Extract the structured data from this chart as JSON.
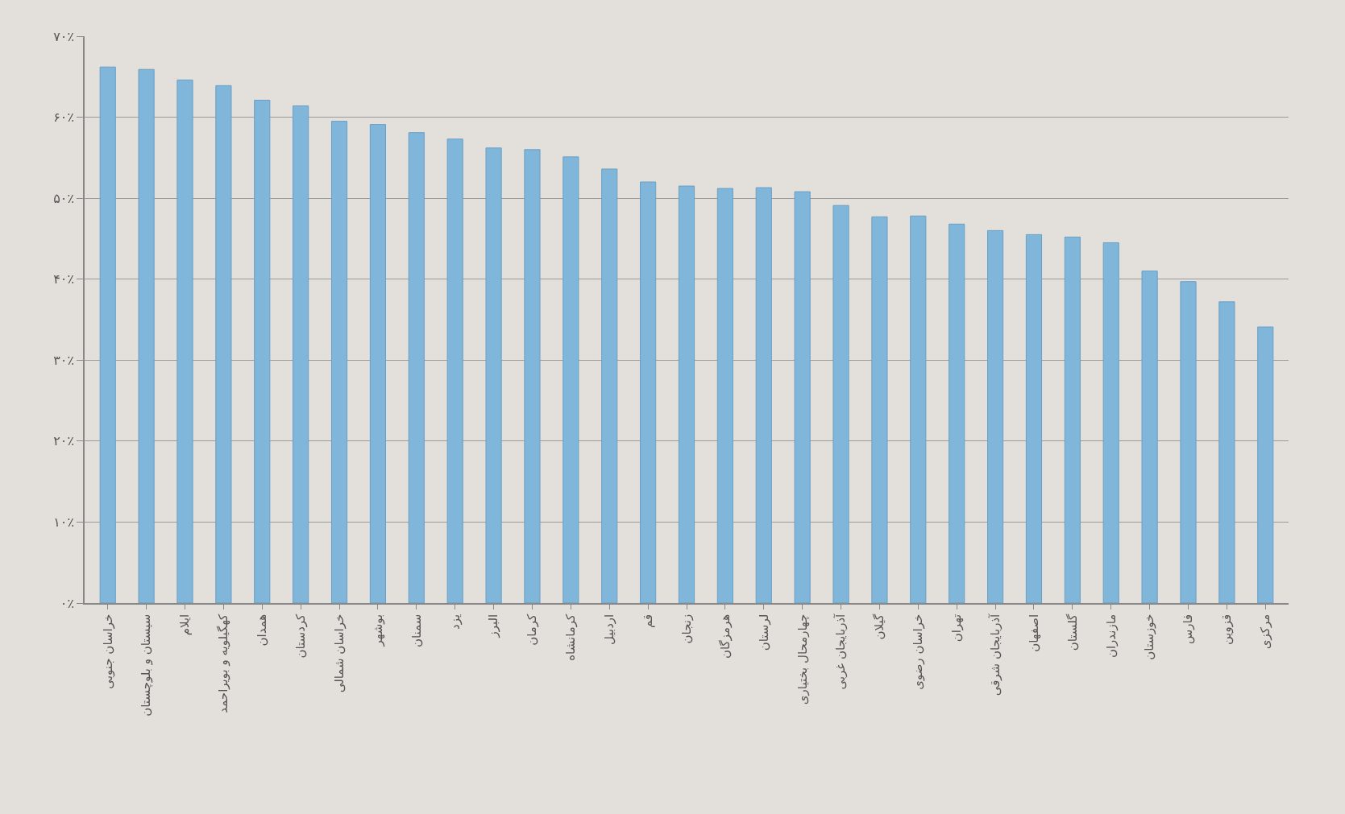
{
  "chart_data": {
    "type": "bar",
    "categories": [
      "خراسان جنوبی",
      "سیستان و بلوچستان",
      "ایلام",
      "کهگیلویه و بویراحمد",
      "همدان",
      "کردستان",
      "خراسان شمالی",
      "بوشهر",
      "سمنان",
      "یزد",
      "البرز",
      "کرمان",
      "کرمانشاه",
      "اردبیل",
      "قم",
      "زنجان",
      "هرمزگان",
      "لرستان",
      "چهارمحال بختیاری",
      "آذربایجان غربی",
      "گیلان",
      "خراسان رضوی",
      "تهران",
      "آذربایجان شرقی",
      "اصفهان",
      "گلستان",
      "مازندران",
      "خوزستان",
      "فارس",
      "قزوین",
      "مرکزی"
    ],
    "values": [
      66.2,
      65.9,
      64.6,
      63.9,
      62.1,
      61.4,
      59.5,
      59.1,
      58.1,
      57.3,
      56.2,
      56.0,
      55.1,
      53.6,
      52.0,
      51.5,
      51.2,
      51.3,
      50.8,
      49.1,
      47.7,
      47.8,
      46.8,
      46.0,
      45.5,
      45.2,
      44.5,
      41.0,
      39.7,
      37.2,
      34.1
    ],
    "color": "#80b6d9",
    "ylim": [
      0,
      70
    ],
    "yticks": [
      {
        "value": 0,
        "label": "۰٪"
      },
      {
        "value": 10,
        "label": "۱۰٪"
      },
      {
        "value": 20,
        "label": "۲۰٪"
      },
      {
        "value": 30,
        "label": "۳۰٪"
      },
      {
        "value": 40,
        "label": "۴۰٪"
      },
      {
        "value": 50,
        "label": "۵۰٪"
      },
      {
        "value": 60,
        "label": "۶۰٪"
      },
      {
        "value": 70,
        "label": "۷۰٪"
      }
    ],
    "grid": "y"
  }
}
